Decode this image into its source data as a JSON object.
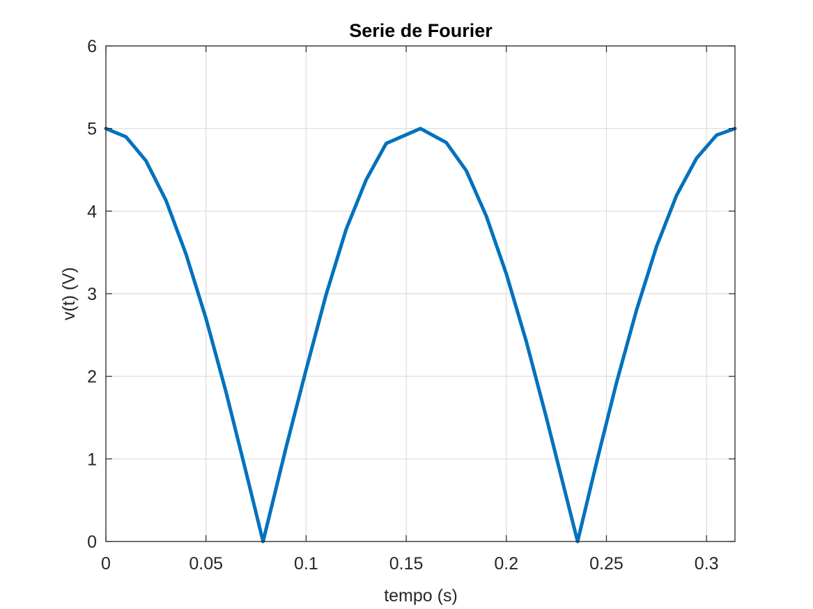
{
  "chart_data": {
    "type": "line",
    "title": "Serie de Fourier",
    "xlabel": "tempo (s)",
    "ylabel": "v(t) (V)",
    "xlim": [
      0,
      0.3142
    ],
    "ylim": [
      0,
      6
    ],
    "grid": true,
    "x_ticks": [
      0,
      0.05,
      0.1,
      0.15,
      0.2,
      0.25,
      0.3
    ],
    "x_tick_labels": [
      "0",
      "0.05",
      "0.1",
      "0.15",
      "0.2",
      "0.25",
      "0.3"
    ],
    "y_ticks": [
      0,
      1,
      2,
      3,
      4,
      5,
      6
    ],
    "y_tick_labels": [
      "0",
      "1",
      "2",
      "3",
      "4",
      "5",
      "6"
    ],
    "series": [
      {
        "color": "#0072BD",
        "x": [
          0,
          0.01,
          0.02,
          0.03,
          0.04,
          0.05,
          0.06,
          0.07,
          0.0785,
          0.09,
          0.1,
          0.11,
          0.12,
          0.13,
          0.14,
          0.1571,
          0.17,
          0.18,
          0.19,
          0.2,
          0.21,
          0.22,
          0.2356,
          0.245,
          0.255,
          0.265,
          0.275,
          0.285,
          0.295,
          0.305,
          0.3142
        ],
        "y": [
          5,
          4.9,
          4.61,
          4.13,
          3.48,
          2.7,
          1.81,
          0.84,
          0,
          1.14,
          2.08,
          2.99,
          3.78,
          4.38,
          4.82,
          5,
          4.83,
          4.49,
          3.94,
          3.24,
          2.42,
          1.5,
          0,
          0.95,
          1.92,
          2.8,
          3.57,
          4.19,
          4.64,
          4.92,
          5
        ]
      }
    ]
  }
}
